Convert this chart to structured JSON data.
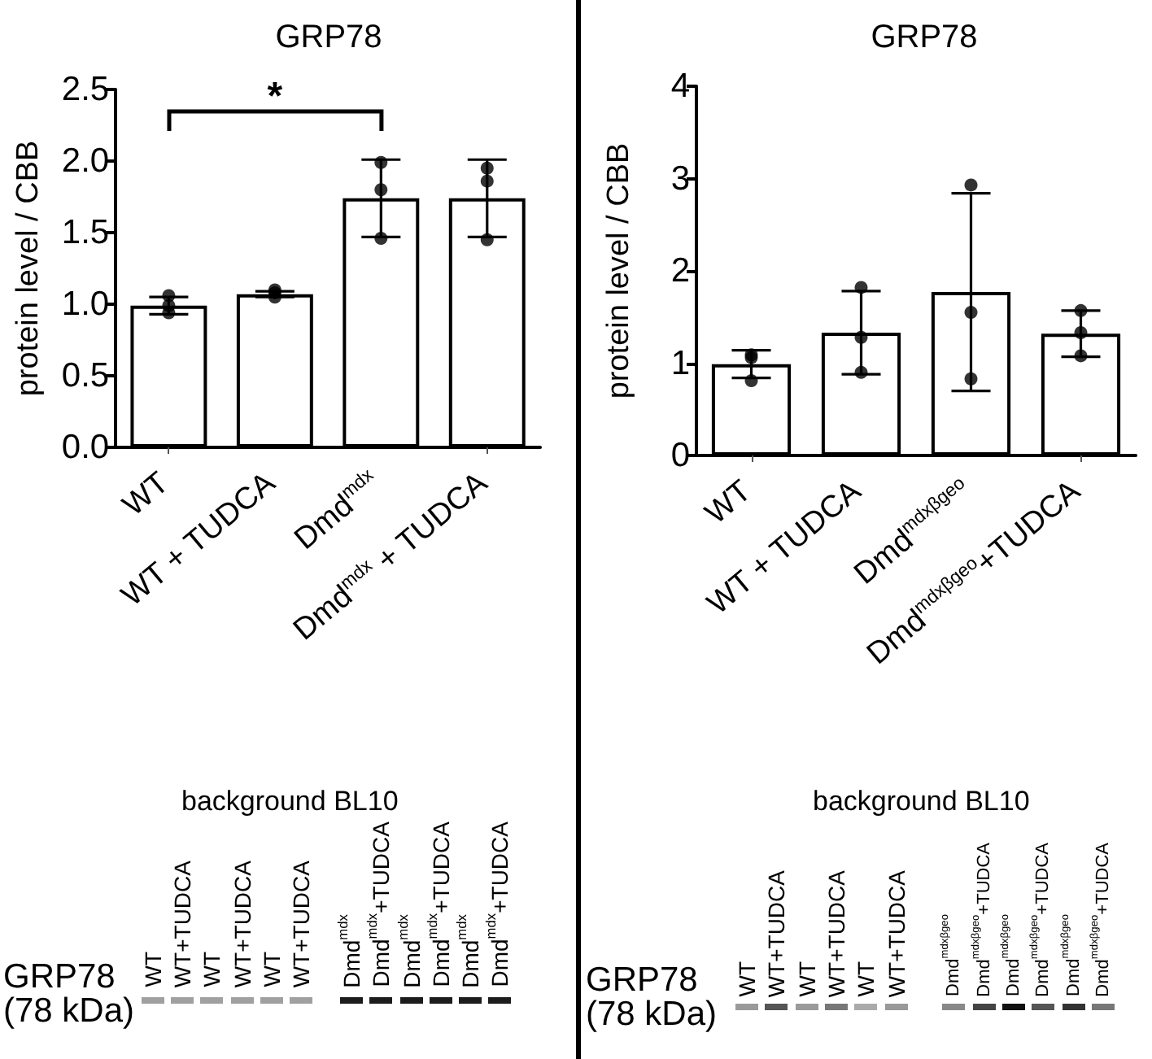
{
  "chart_data": [
    {
      "type": "bar",
      "title": "GRP78",
      "ylabel": "protein level / CBB",
      "categories": [
        "WT",
        "WT + TUDCA",
        "Dmd$^{mdx}$",
        "Dmd$^{mdx}$ + TUDCA"
      ],
      "series": [
        {
          "type": "bar",
          "color": "#ffffff",
          "values": [
            0.99,
            1.07,
            1.74,
            1.74
          ],
          "errors": [
            0.06,
            0.02,
            0.27,
            0.27
          ]
        },
        {
          "type": "scatter",
          "color": "#000000",
          "x": [
            "WT",
            "WT",
            "WT",
            "WT + TUDCA",
            "WT + TUDCA",
            "WT + TUDCA",
            "Dmd$^{mdx}$",
            "Dmd$^{mdx}$",
            "Dmd$^{mdx}$",
            "Dmd$^{mdx}$ + TUDCA",
            "Dmd$^{mdx}$ + TUDCA",
            "Dmd$^{mdx}$ + TUDCA"
          ],
          "values": [
            1.06,
            0.99,
            0.94,
            1.05,
            1.1,
            1.08,
            1.99,
            1.8,
            1.46,
            1.95,
            1.86,
            1.45
          ]
        }
      ],
      "ylim": [
        0,
        2.5
      ],
      "yticks": [
        {
          "value": 0,
          "label": "0.0"
        },
        0.5,
        {
          "value": 1,
          "label": "1.0"
        },
        1.5,
        {
          "value": 2,
          "label": "2.0"
        },
        2.5
      ],
      "marker": "circle",
      "annotations": [
        "*"
      ]
    },
    {
      "type": "bar",
      "title": "GRP78",
      "ylabel": "protein level / CBB",
      "categories": [
        "WT",
        "WT + TUDCA",
        "Dmd$^{mdxβgeo}$",
        "Dmd$^{mdxβgeo}$+TUDCA"
      ],
      "series": [
        {
          "type": "bar",
          "color": "#ffffff",
          "values": [
            0.99,
            1.33,
            1.77,
            1.32
          ],
          "errors": [
            0.15,
            0.45,
            1.07,
            0.25
          ]
        },
        {
          "type": "scatter",
          "color": "#000000",
          "x": [
            "WT",
            "WT",
            "WT",
            "WT + TUDCA",
            "WT + TUDCA",
            "WT + TUDCA",
            "Dmd$^{mdxβgeo}$",
            "Dmd$^{mdxβgeo}$",
            "Dmd$^{mdxβgeo}$",
            "Dmd$^{mdxβgeo}$+TUDCA",
            "Dmd$^{mdxβgeo}$+TUDCA",
            "Dmd$^{mdxβgeo}$+TUDCA"
          ],
          "values": [
            1.09,
            1.06,
            0.81,
            1.82,
            1.28,
            0.9,
            2.93,
            1.55,
            0.83,
            1.57,
            1.33,
            1.08
          ]
        }
      ],
      "ylim": [
        0,
        4
      ],
      "yticks": [
        0,
        1,
        2,
        3,
        4
      ],
      "marker": "circle"
    },
    {
      "type": "other",
      "title": "background BL10",
      "ylabel": "GRP78 (78 kDa)",
      "annotations": [
        "WT",
        "WT+TUDCA",
        "WT",
        "WT+TUDCA",
        "WT",
        "WT+TUDCA",
        "Dmd$^{mdx}$",
        "Dmd$^{mdx}$+TUDCA",
        "Dmd$^{mdx}$",
        "Dmd$^{mdx}$+TUDCA",
        "Dmd$^{mdx}$",
        "Dmd$^{mdx}$+TUDCA"
      ]
    },
    {
      "type": "other",
      "title": "background BL10",
      "ylabel": "GRP78 (78 kDa)",
      "annotations": [
        "WT",
        "WT+TUDCA",
        "WT",
        "WT+TUDCA",
        "WT",
        "WT+TUDCA",
        "Dmd$^{mdxβgeo}$",
        "Dmd$^{mdxβgeo}$+TUDCA",
        "Dmd$^{mdxβgeo}$",
        "Dmd$^{mdxβgeo}$+TUDCA",
        "Dmd$^{mdxβgeo}$",
        "Dmd$^{mdxβgeo}$+TUDCA"
      ]
    }
  ]
}
